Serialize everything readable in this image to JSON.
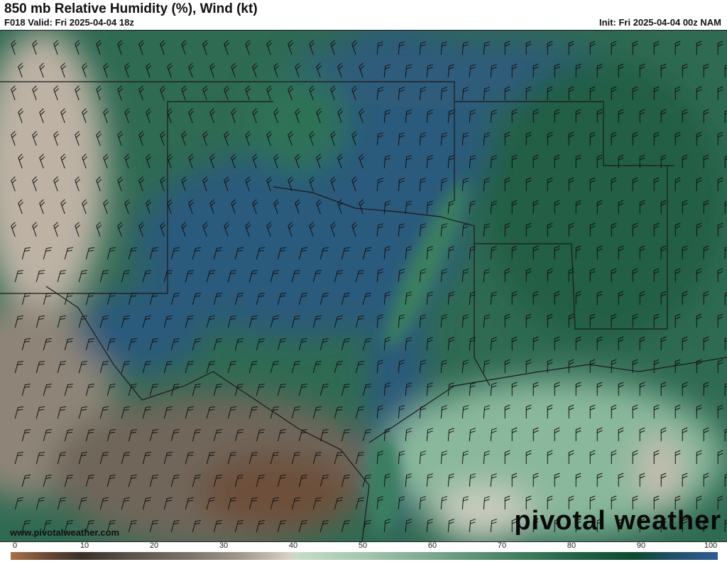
{
  "header": {
    "title": "850 mb Relative Humidity (%), Wind (kt)",
    "valid": "F018 Valid: Fri 2025-04-04 18z",
    "init": "Init: Fri 2025-04-04 00z NAM"
  },
  "footer": {
    "website": "www.pivotalweather.com",
    "logo": "pivotal weather"
  },
  "colorbar": {
    "ticks": [
      "0",
      "10",
      "20",
      "30",
      "40",
      "50",
      "60",
      "70",
      "80",
      "90",
      "100"
    ],
    "colors": {
      "0": "#a8714a",
      "10": "#3a3029",
      "20": "#5a544c",
      "30": "#a59c90",
      "40": "#d9d1c5",
      "50": "#a3c6ae",
      "60": "#77a68e",
      "70": "#4a8468",
      "80": "#236347",
      "90": "#0d4a30",
      "100": "#2f5e92"
    }
  },
  "map": {
    "region": "Southern Plains / Texas / Lower Mississippi Valley",
    "field": "relative-humidity",
    "overlay": "wind-barbs"
  }
}
